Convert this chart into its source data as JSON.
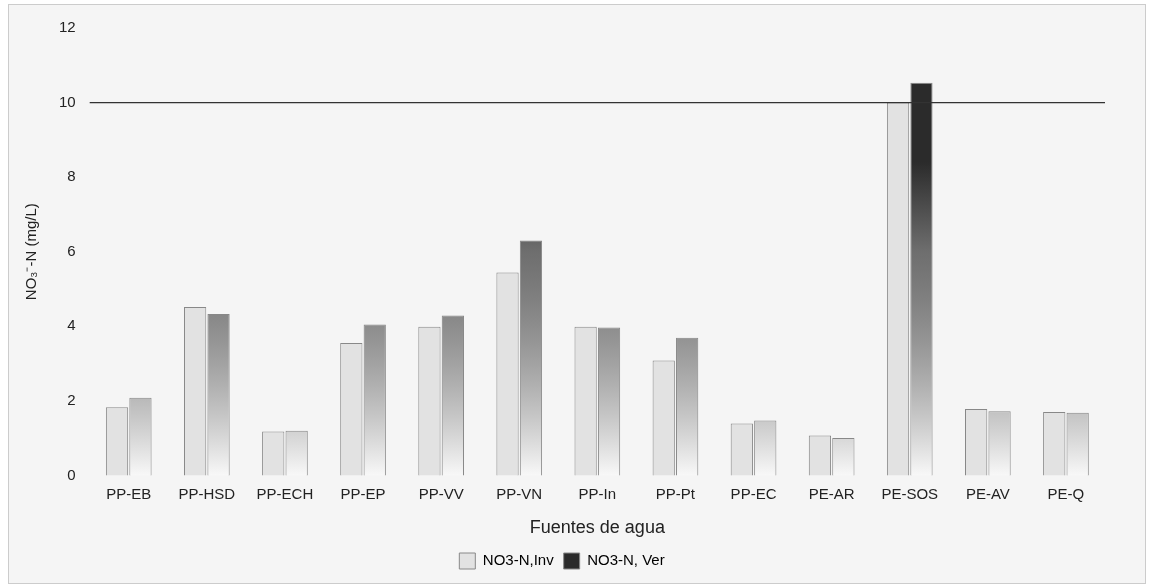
{
  "chart_data": {
    "type": "bar",
    "xlabel": "Fuentes de agua",
    "ylabel": "NO₃⁻-N (mg/L)",
    "categories": [
      "PP-EB",
      "PP-HSD",
      "PP-ECH",
      "PP-EP",
      "PP-VV",
      "PP-VN",
      "PP-In",
      "PP-Pt",
      "PP-EC",
      "PE-AR",
      "PE-SOS",
      "PE-AV",
      "PE-Q"
    ],
    "series": [
      {
        "name": "NO3-N,Inv",
        "color": "#e2e2e2",
        "values": [
          1.83,
          4.52,
          1.18,
          3.55,
          3.99,
          5.44,
          3.99,
          3.08,
          1.39,
          1.07,
          10.0,
          1.78,
          1.7
        ]
      },
      {
        "name": "NO3-N, Ver",
        "color": "#2b2b2b",
        "values": [
          2.08,
          4.33,
          1.2,
          4.05,
          4.29,
          6.3,
          3.97,
          3.69,
          1.47,
          1.0,
          10.53,
          1.72,
          1.68
        ]
      }
    ],
    "ylim": [
      0,
      12
    ],
    "yticks": [
      0,
      2,
      4,
      6,
      8,
      10,
      12
    ],
    "ref_lines": [
      {
        "axis": "y",
        "value": 10,
        "color": "#333333"
      }
    ],
    "grid": false,
    "legend": "bottom"
  }
}
